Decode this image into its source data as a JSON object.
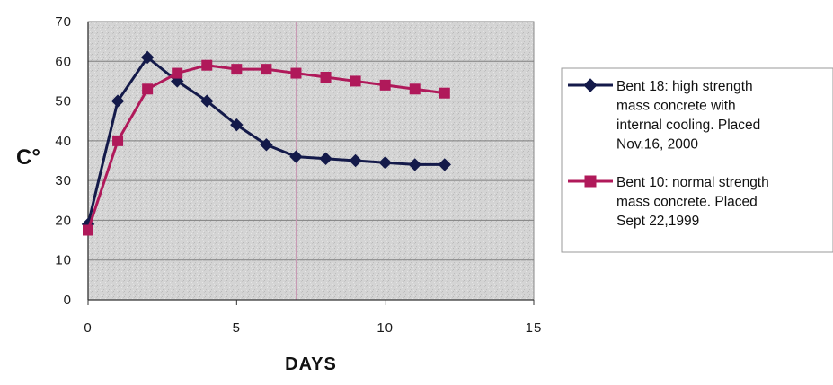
{
  "chart_data": {
    "type": "line",
    "title": "",
    "xlabel": "DAYS",
    "ylabel": "C°",
    "xlim": [
      0,
      15
    ],
    "ylim": [
      0,
      70
    ],
    "x_ticks": [
      "0",
      "5",
      "10",
      "15"
    ],
    "y_ticks": [
      "0",
      "10",
      "20",
      "30",
      "40",
      "50",
      "60",
      "70"
    ],
    "grid": true,
    "legend_position": "right",
    "series": [
      {
        "name": "Bent 18: high strength mass concrete with internal cooling. Placed Nov.16, 2000",
        "legend_lines": [
          "Bent 18: high strength",
          "mass concrete with",
          "internal cooling. Placed",
          "Nov.16,  2000"
        ],
        "color": "#141a4a",
        "marker": "diamond",
        "x": [
          0,
          1,
          2,
          3,
          4,
          5,
          6,
          7,
          8,
          9,
          10,
          11,
          12
        ],
        "y": [
          19,
          50,
          61,
          55,
          50,
          44,
          39,
          36,
          35.5,
          35,
          34.5,
          34,
          34
        ]
      },
      {
        "name": "Bent 10: normal strength mass concrete. Placed Sept 22,1999",
        "legend_lines": [
          "Bent 10: normal strength",
          "mass concrete. Placed",
          "Sept 22,1999"
        ],
        "color": "#b0195a",
        "marker": "square",
        "x": [
          0,
          1,
          2,
          3,
          4,
          5,
          6,
          7,
          8,
          9,
          10,
          11,
          12
        ],
        "y": [
          17.5,
          40,
          53,
          57,
          59,
          58,
          58,
          57,
          56,
          55,
          54,
          53,
          52
        ]
      }
    ]
  }
}
